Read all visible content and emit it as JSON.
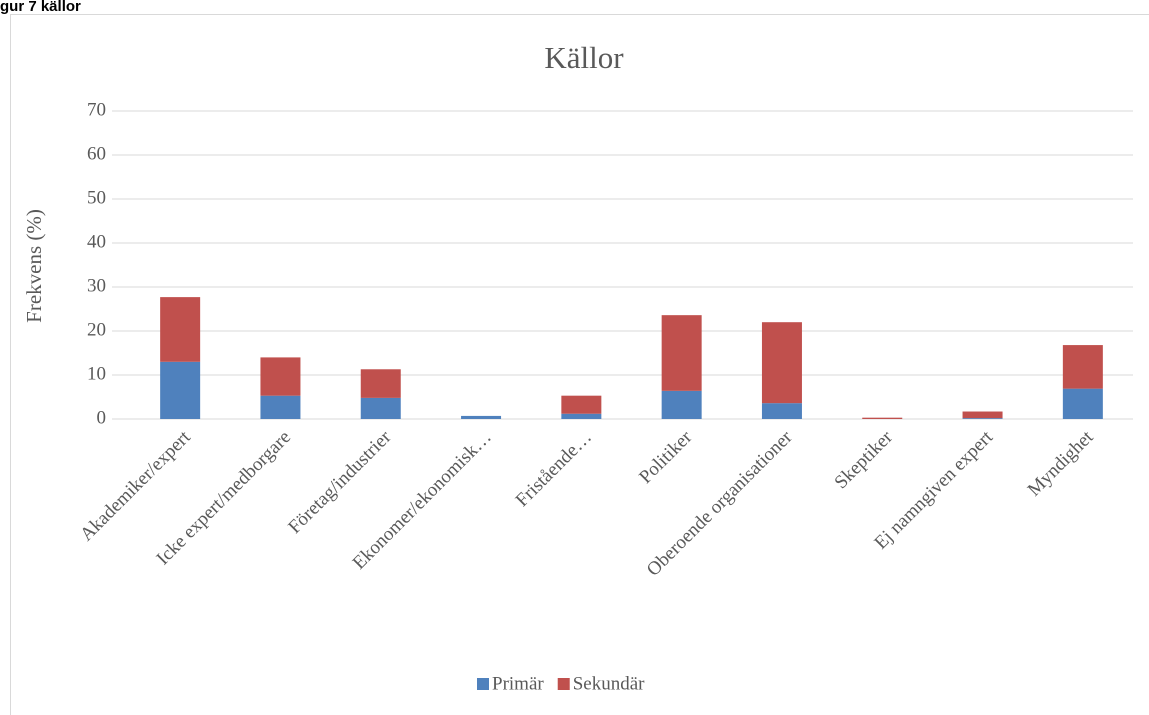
{
  "page_heading": "gur 7 källor",
  "chart_data": {
    "type": "stacked_bar",
    "title": "Källor",
    "y_label": "Frekvens (%)",
    "categories": [
      "Akademiker/expert",
      "Icke expert/medborgare",
      "Företag/industrier",
      "Ekonomer/ekonomisk…",
      "Fristående…",
      "Politiker",
      "Oberoende organisationer",
      "Skeptiker",
      "Ej namngiven expert",
      "Myndighet"
    ],
    "series": [
      {
        "name": "Primär",
        "color": "#4f81bd",
        "values": [
          13.0,
          5.3,
          4.8,
          0.7,
          1.2,
          6.4,
          3.6,
          0,
          0.2,
          6.9
        ]
      },
      {
        "name": "Sekundär",
        "color": "#c0504d",
        "values": [
          14.7,
          8.7,
          6.5,
          0,
          4.1,
          17.2,
          18.4,
          0.3,
          1.5,
          9.9
        ]
      }
    ],
    "ylim": [
      0,
      70
    ],
    "yticks": [
      0,
      10,
      20,
      30,
      40,
      50,
      60,
      70
    ],
    "grid": true,
    "legend": "bottom"
  }
}
